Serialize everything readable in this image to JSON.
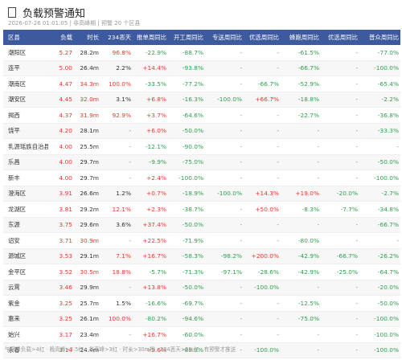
{
  "header": {
    "title": "负载预警通知",
    "subtitle": "2026-07-26 01:01:05 | 非高峰期 | 预警 20 个区县"
  },
  "table": {
    "columns": [
      "区县",
      "负载",
      "时长",
      "234恶天",
      "推单周同比",
      "开工周同比",
      "专送周同比",
      "优选周同比",
      "蜂跑周同比",
      "优选周同比",
      "普众周同比"
    ],
    "rows": [
      [
        "潮阳区",
        "5.27",
        "28.2m",
        "96.8%",
        "-22.9%",
        "-88.7%",
        "-",
        "-",
        "-61.5%",
        "-",
        "-77.0%"
      ],
      [
        "连平",
        "5.00",
        "26.4m",
        "2.2%",
        "+14.4%",
        "-93.8%",
        "-",
        "-",
        "-66.7%",
        "-",
        "-100.0%"
      ],
      [
        "潮南区",
        "4.47",
        "34.3m",
        "100.0%",
        "-33.5%",
        "-77.2%",
        "-",
        "-66.7%",
        "-52.9%",
        "-",
        "-65.4%"
      ],
      [
        "潮安区",
        "4.45",
        "32.0m",
        "3.1%",
        "+6.8%",
        "-16.3%",
        "-100.0%",
        "+66.7%",
        "-18.8%",
        "-",
        "-2.2%"
      ],
      [
        "揭西",
        "4.37",
        "31.9m",
        "92.9%",
        "+3.7%",
        "-64.6%",
        "-",
        "-",
        "-22.7%",
        "-",
        "-36.8%"
      ],
      [
        "饶平",
        "4.20",
        "28.1m",
        "-",
        "+6.0%",
        "-50.0%",
        "-",
        "-",
        "-",
        "-",
        "-33.3%"
      ],
      [
        "乳源瑶族自治县",
        "4.00",
        "25.5m",
        "-",
        "-12.1%",
        "-90.0%",
        "-",
        "-",
        "-",
        "-",
        "-"
      ],
      [
        "乐昌",
        "4.00",
        "29.7m",
        "-",
        "-9.9%",
        "-75.0%",
        "-",
        "-",
        "-",
        "-",
        "-50.0%"
      ],
      [
        "新丰",
        "4.00",
        "29.7m",
        "-",
        "+2.4%",
        "-100.0%",
        "-",
        "-",
        "-",
        "-",
        "-100.0%"
      ],
      [
        "澄海区",
        "3.91",
        "26.6m",
        "1.2%",
        "+0.7%",
        "-18.9%",
        "-100.0%",
        "+14.3%",
        "+19.0%",
        "-20.0%",
        "-2.7%"
      ],
      [
        "龙湖区",
        "3.81",
        "29.2m",
        "12.1%",
        "+2.3%",
        "-38.7%",
        "-",
        "+50.0%",
        "-8.3%",
        "-7.7%",
        "-34.8%"
      ],
      [
        "东源",
        "3.75",
        "29.6m",
        "3.6%",
        "+37.4%",
        "-50.0%",
        "-",
        "-",
        "-",
        "-",
        "-66.7%"
      ],
      [
        "诏安",
        "3.71",
        "30.9m",
        "-",
        "+22.5%",
        "-71.9%",
        "-",
        "-",
        "-80.0%",
        "-",
        "-"
      ],
      [
        "源城区",
        "3.53",
        "29.1m",
        "7.1%",
        "+16.7%",
        "-58.3%",
        "-98.2%",
        "+200.0%",
        "-42.9%",
        "-66.7%",
        "-26.2%"
      ],
      [
        "金平区",
        "3.52",
        "30.5m",
        "18.8%",
        "-5.7%",
        "-71.3%",
        "-97.1%",
        "-28.6%",
        "-42.9%",
        "-25.0%",
        "-64.7%"
      ],
      [
        "云霄",
        "3.46",
        "29.9m",
        "-",
        "+13.8%",
        "-50.0%",
        "-",
        "-100.0%",
        "-",
        "-",
        "-20.0%"
      ],
      [
        "紫金",
        "3.25",
        "25.7m",
        "1.5%",
        "-16.6%",
        "-69.7%",
        "-",
        "-",
        "-12.5%",
        "-",
        "-50.0%"
      ],
      [
        "惠来",
        "3.25",
        "26.1m",
        "100.0%",
        "-80.2%",
        "-94.6%",
        "-",
        "-",
        "-75.0%",
        "-",
        "-100.0%"
      ],
      [
        "始兴",
        "3.17",
        "23.4m",
        "-",
        "+16.7%",
        "-60.0%",
        "-",
        "-",
        "-",
        "-",
        "-100.0%"
      ],
      [
        "永春",
        "3.14",
        "24.4m",
        "-",
        "+9.6%",
        "-88.9%",
        "-",
        "-100.0%",
        "-",
        "-",
        "-100.0%"
      ]
    ]
  },
  "footer": "午高峰负载>4红 · 晚高峰>3.5红 · 非高峰>3红 · 时长>30m橙 · 234恶天>5%红 · 有预警才推送"
}
